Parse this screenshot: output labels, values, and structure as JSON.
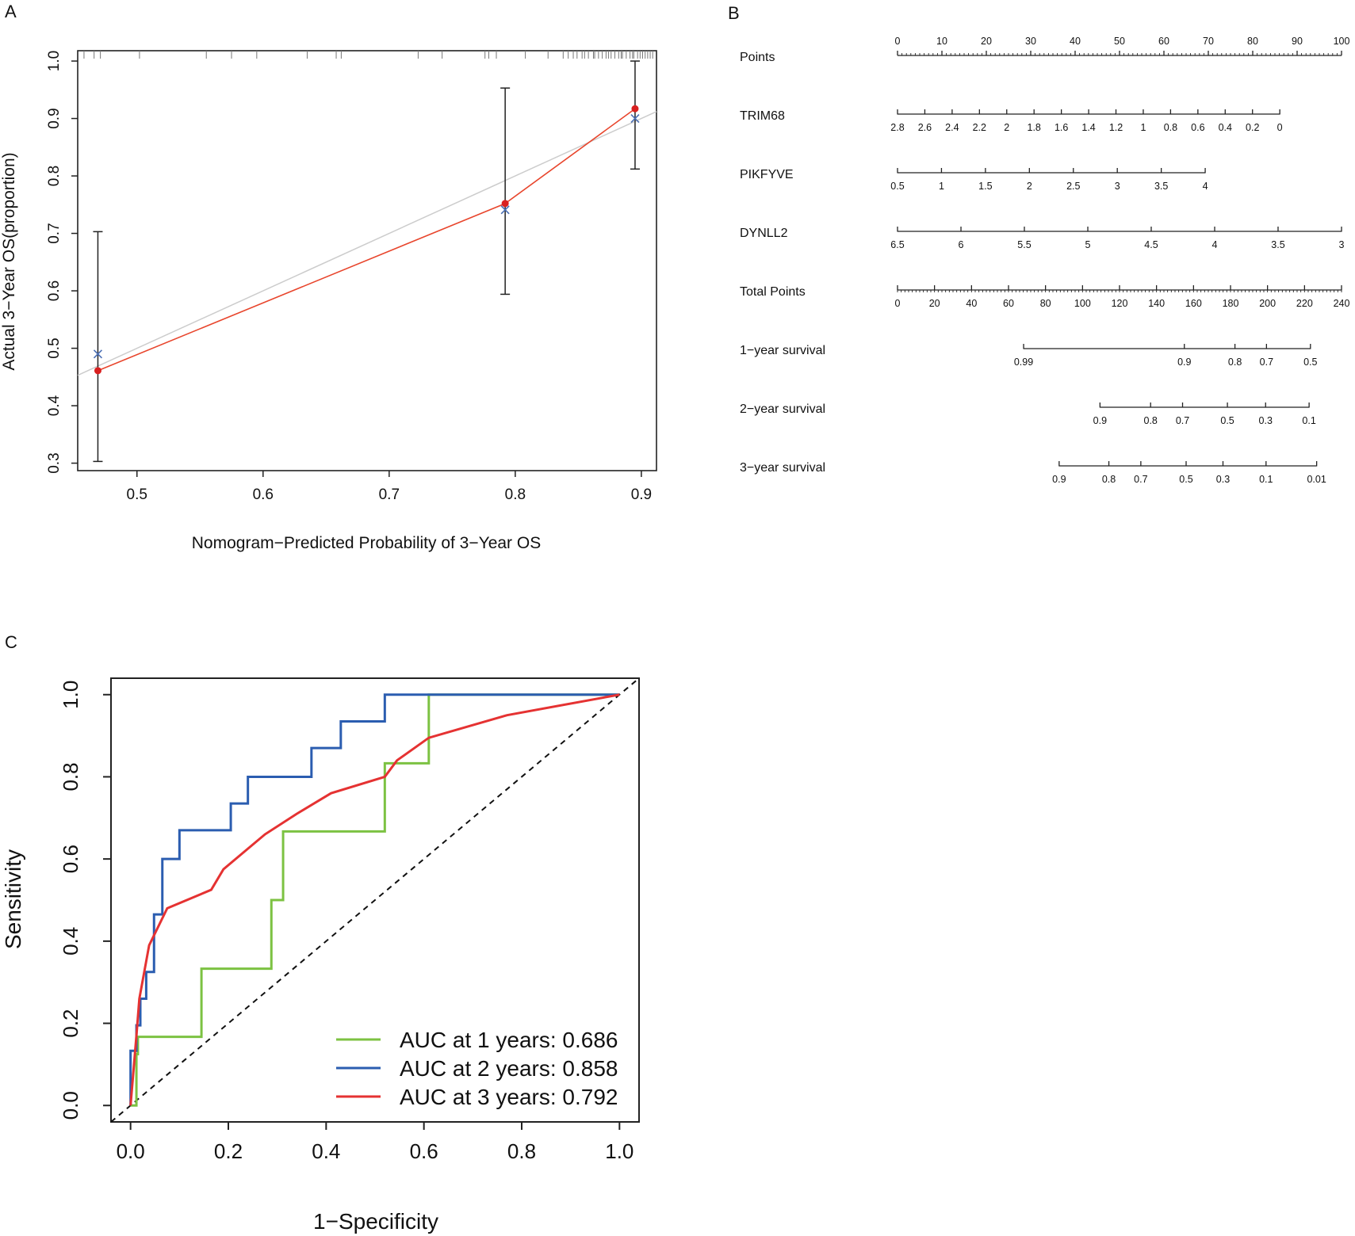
{
  "panels": {
    "a": "A",
    "b": "B",
    "c": "C"
  },
  "colors": {
    "calib_line": "#e8452c",
    "calib_point": "#d92020",
    "calib_cross": "#4a6fb5",
    "calib_ideal": "#cccccc",
    "roc_1": "#7cc242",
    "roc_2": "#2b5db0",
    "roc_3": "#e53232"
  },
  "chart_data": [
    {
      "type": "line",
      "id": "calibration",
      "xlabel": "Nomogram−Predicted Probability of 3−Year OS",
      "ylabel": "Actual 3−Year OS(proportion)",
      "xlim": [
        0.453,
        0.912
      ],
      "ylim": [
        0.287,
        1.018
      ],
      "x_ticks": [
        0.5,
        0.6,
        0.7,
        0.8,
        0.9
      ],
      "x_tick_labels": [
        "0.5",
        "0.6",
        "0.7",
        "0.8",
        "0.9"
      ],
      "y_ticks": [
        0.3,
        0.4,
        0.5,
        0.6,
        0.7,
        0.8,
        0.9,
        1.0
      ],
      "y_tick_labels": [
        "0.3",
        "0.4",
        "0.5",
        "0.6",
        "0.7",
        "0.8",
        "0.9",
        "1.0"
      ],
      "ideal_line": [
        [
          0.453,
          0.453
        ],
        [
          0.912,
          0.912
        ]
      ],
      "observed": [
        {
          "x": 0.469,
          "y": 0.461,
          "lower": 0.303,
          "upper": 0.703
        },
        {
          "x": 0.792,
          "y": 0.752,
          "lower": 0.594,
          "upper": 0.953
        },
        {
          "x": 0.895,
          "y": 0.917,
          "lower": 0.812,
          "upper": 1.0
        }
      ],
      "bias_corrected": [
        {
          "x": 0.469,
          "y": 0.49
        },
        {
          "x": 0.792,
          "y": 0.741
        },
        {
          "x": 0.895,
          "y": 0.9
        }
      ],
      "rug": [
        0.458,
        0.466,
        0.471,
        0.502,
        0.555,
        0.575,
        0.595,
        0.635,
        0.658,
        0.662,
        0.723,
        0.742,
        0.776,
        0.779,
        0.785,
        0.808,
        0.826,
        0.838,
        0.842,
        0.849,
        0.855,
        0.858,
        0.862,
        0.866,
        0.869,
        0.872,
        0.876,
        0.879,
        0.882,
        0.885,
        0.888,
        0.891,
        0.894,
        0.897,
        0.899,
        0.901,
        0.903,
        0.905,
        0.907,
        0.909,
        0.863,
        0.846,
        0.853,
        0.874,
        0.884,
        0.893
      ]
    },
    {
      "type": "nomogram",
      "id": "nomogram",
      "points_range": [
        0,
        100
      ],
      "rows": [
        {
          "name": "Points",
          "labels": [
            "0",
            "10",
            "20",
            "30",
            "40",
            "50",
            "60",
            "70",
            "80",
            "90",
            "100"
          ],
          "positions": [
            0,
            10,
            20,
            30,
            40,
            50,
            60,
            70,
            80,
            90,
            100
          ],
          "minor_step": 1,
          "labels_above": true
        },
        {
          "name": "TRIM68",
          "labels": [
            "2.8",
            "2.6",
            "2.4",
            "2.2",
            "2",
            "1.8",
            "1.6",
            "1.4",
            "1.2",
            "1",
            "0.8",
            "0.6",
            "0.4",
            "0.2",
            "0"
          ],
          "positions": [
            0,
            6.15,
            12.3,
            18.45,
            24.6,
            30.75,
            36.9,
            43.05,
            49.2,
            55.35,
            61.5,
            67.65,
            73.8,
            79.95,
            86.1
          ]
        },
        {
          "name": "PIKFYVE",
          "labels": [
            "0.5",
            "1",
            "1.5",
            "2",
            "2.5",
            "3",
            "3.5",
            "4"
          ],
          "positions": [
            0,
            9.9,
            19.8,
            29.7,
            39.6,
            49.5,
            59.4,
            69.3
          ]
        },
        {
          "name": "DYNLL2",
          "labels": [
            "6.5",
            "6",
            "5.5",
            "5",
            "4.5",
            "4",
            "3.5",
            "3"
          ],
          "positions": [
            0,
            14.29,
            28.57,
            42.86,
            57.14,
            71.43,
            85.71,
            100
          ]
        },
        {
          "name": "Total Points",
          "labels": [
            "0",
            "20",
            "40",
            "60",
            "80",
            "100",
            "120",
            "140",
            "160",
            "180",
            "200",
            "220",
            "240"
          ],
          "positions": [
            0,
            8.33,
            16.67,
            25,
            33.33,
            41.67,
            50,
            58.33,
            66.67,
            75,
            83.33,
            91.67,
            100
          ],
          "minor_step": 0.8333
        },
        {
          "name": "1−year survival",
          "labels": [
            "0.99",
            "0.9",
            "0.8",
            "0.7",
            "0.5"
          ],
          "positions": [
            28.4,
            64.6,
            76.0,
            83.1,
            93.0
          ]
        },
        {
          "name": "2−year survival",
          "labels": [
            "0.9",
            "0.8",
            "0.7",
            "0.5",
            "0.3",
            "0.1"
          ],
          "positions": [
            45.6,
            57.0,
            64.2,
            74.3,
            82.9,
            92.7
          ]
        },
        {
          "name": "3−year survival",
          "labels": [
            "0.9",
            "0.8",
            "0.7",
            "0.5",
            "0.3",
            "0.1",
            "0.01"
          ],
          "positions": [
            36.4,
            47.6,
            54.8,
            65.0,
            73.3,
            83.0,
            94.4
          ]
        }
      ]
    },
    {
      "type": "line",
      "id": "roc",
      "xlabel": "1−Specificity",
      "ylabel": "Sensitivity",
      "xlim": [
        -0.04,
        1.04
      ],
      "ylim": [
        -0.04,
        1.04
      ],
      "x_ticks": [
        0,
        0.2,
        0.4,
        0.6,
        0.8,
        1.0
      ],
      "x_tick_labels": [
        "0.0",
        "0.2",
        "0.4",
        "0.6",
        "0.8",
        "1.0"
      ],
      "y_ticks": [
        0,
        0.2,
        0.4,
        0.6,
        0.8,
        1.0
      ],
      "y_tick_labels": [
        "0.0",
        "0.2",
        "0.4",
        "0.6",
        "0.8",
        "1.0"
      ],
      "series": [
        {
          "name": "AUC at 1 years: 0.686",
          "auc": 0.686,
          "x": [
            0,
            0.012,
            0.012,
            0.015,
            0.015,
            0.145,
            0.145,
            0.288,
            0.288,
            0.312,
            0.312,
            0.52,
            0.52,
            0.61,
            0.61,
            1.0
          ],
          "y": [
            0,
            0,
            0.125,
            0.125,
            0.167,
            0.167,
            0.333,
            0.333,
            0.5,
            0.5,
            0.667,
            0.667,
            0.833,
            0.833,
            1.0,
            1.0
          ]
        },
        {
          "name": "AUC at 2 years: 0.858",
          "auc": 0.858,
          "x": [
            0,
            0,
            0.012,
            0.012,
            0.02,
            0.02,
            0.032,
            0.032,
            0.048,
            0.048,
            0.065,
            0.065,
            0.1,
            0.1,
            0.205,
            0.205,
            0.24,
            0.24,
            0.37,
            0.37,
            0.43,
            0.43,
            0.52,
            0.52,
            1.0
          ],
          "y": [
            0,
            0.133,
            0.133,
            0.195,
            0.195,
            0.26,
            0.26,
            0.325,
            0.325,
            0.465,
            0.465,
            0.6,
            0.6,
            0.67,
            0.67,
            0.735,
            0.735,
            0.8,
            0.8,
            0.87,
            0.87,
            0.935,
            0.935,
            1.0,
            1.0
          ]
        },
        {
          "name": "AUC at 3 years: 0.792",
          "auc": 0.792,
          "x": [
            0,
            0.012,
            0.012,
            0.018,
            0.018,
            0.038,
            0.038,
            0.075,
            0.075,
            0.165,
            0.165,
            0.19,
            0.19,
            0.235,
            0.235,
            0.275,
            0.275,
            0.34,
            0.34,
            0.41,
            0.41,
            0.52,
            0.52,
            0.545,
            0.545,
            0.61,
            0.61,
            0.77,
            0.77,
            1.0
          ],
          "y": [
            0,
            0.17,
            0.17,
            0.26,
            0.26,
            0.39,
            0.39,
            0.48,
            0.48,
            0.525,
            0.525,
            0.575,
            0.575,
            0.62,
            0.62,
            0.66,
            0.66,
            0.71,
            0.71,
            0.76,
            0.76,
            0.8,
            0.8,
            0.84,
            0.84,
            0.895,
            0.895,
            0.95,
            0.95,
            1.0
          ]
        }
      ],
      "diagonal": [
        [
          -0.04,
          -0.04
        ],
        [
          1.04,
          1.04
        ]
      ]
    }
  ]
}
